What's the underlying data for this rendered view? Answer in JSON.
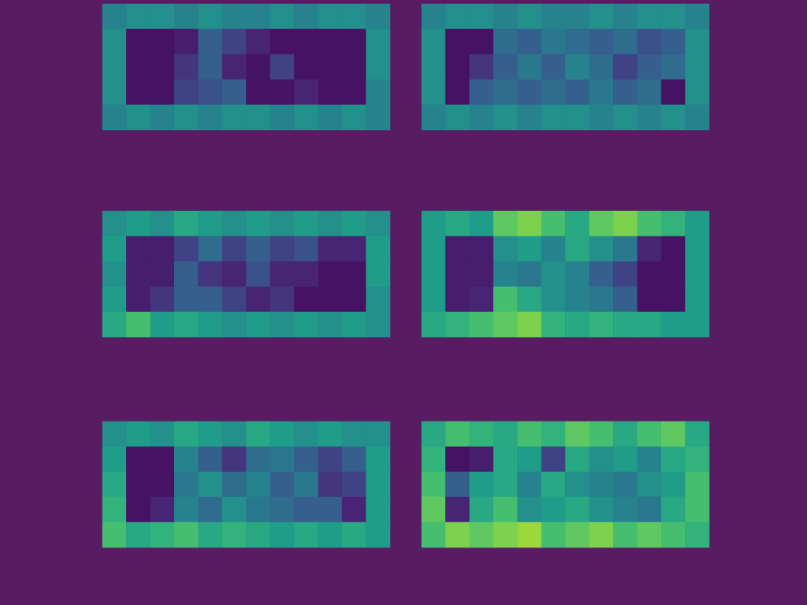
{
  "chart_data": [
    {
      "type": "heatmap",
      "color": "viridis",
      "tick_labels": false,
      "zlim": [
        0,
        1
      ],
      "cells": [
        [
          0.45,
          0.5,
          0.5,
          0.45,
          0.5,
          0.45,
          0.45,
          0.5,
          0.45,
          0.5,
          0.5,
          0.45
        ],
        [
          0.5,
          0.05,
          0.05,
          0.08,
          0.3,
          0.2,
          0.1,
          0.05,
          0.05,
          0.05,
          0.05,
          0.5
        ],
        [
          0.5,
          0.05,
          0.05,
          0.15,
          0.3,
          0.1,
          0.05,
          0.2,
          0.05,
          0.05,
          0.05,
          0.5
        ],
        [
          0.5,
          0.05,
          0.05,
          0.2,
          0.25,
          0.3,
          0.05,
          0.05,
          0.1,
          0.05,
          0.05,
          0.45
        ],
        [
          0.45,
          0.5,
          0.45,
          0.5,
          0.45,
          0.5,
          0.5,
          0.45,
          0.5,
          0.45,
          0.5,
          0.45
        ]
      ]
    },
    {
      "type": "heatmap",
      "color": "viridis",
      "tick_labels": false,
      "zlim": [
        0,
        1
      ],
      "cells": [
        [
          0.45,
          0.5,
          0.5,
          0.45,
          0.5,
          0.45,
          0.45,
          0.5,
          0.45,
          0.5,
          0.5,
          0.45
        ],
        [
          0.5,
          0.05,
          0.05,
          0.35,
          0.3,
          0.4,
          0.35,
          0.3,
          0.35,
          0.25,
          0.3,
          0.5
        ],
        [
          0.5,
          0.05,
          0.15,
          0.3,
          0.4,
          0.3,
          0.45,
          0.35,
          0.2,
          0.3,
          0.35,
          0.5
        ],
        [
          0.5,
          0.05,
          0.3,
          0.35,
          0.3,
          0.35,
          0.3,
          0.4,
          0.3,
          0.35,
          0.05,
          0.5
        ],
        [
          0.45,
          0.5,
          0.45,
          0.5,
          0.45,
          0.5,
          0.5,
          0.45,
          0.5,
          0.45,
          0.5,
          0.45
        ]
      ]
    },
    {
      "type": "heatmap",
      "color": "viridis",
      "tick_labels": false,
      "zlim": [
        0,
        1
      ],
      "cells": [
        [
          0.5,
          0.55,
          0.5,
          0.6,
          0.55,
          0.5,
          0.55,
          0.5,
          0.55,
          0.5,
          0.55,
          0.5
        ],
        [
          0.55,
          0.08,
          0.08,
          0.2,
          0.35,
          0.2,
          0.3,
          0.2,
          0.25,
          0.1,
          0.1,
          0.55
        ],
        [
          0.5,
          0.08,
          0.08,
          0.3,
          0.15,
          0.1,
          0.25,
          0.1,
          0.1,
          0.05,
          0.05,
          0.55
        ],
        [
          0.55,
          0.08,
          0.15,
          0.3,
          0.3,
          0.2,
          0.1,
          0.15,
          0.05,
          0.05,
          0.05,
          0.5
        ],
        [
          0.6,
          0.7,
          0.55,
          0.6,
          0.55,
          0.5,
          0.55,
          0.5,
          0.55,
          0.5,
          0.55,
          0.5
        ]
      ]
    },
    {
      "type": "heatmap",
      "color": "viridis",
      "tick_labels": false,
      "zlim": [
        0,
        1
      ],
      "cells": [
        [
          0.55,
          0.6,
          0.55,
          0.75,
          0.8,
          0.7,
          0.6,
          0.75,
          0.8,
          0.7,
          0.65,
          0.55
        ],
        [
          0.55,
          0.08,
          0.08,
          0.5,
          0.55,
          0.45,
          0.6,
          0.5,
          0.4,
          0.1,
          0.05,
          0.55
        ],
        [
          0.55,
          0.08,
          0.08,
          0.45,
          0.4,
          0.5,
          0.45,
          0.3,
          0.2,
          0.05,
          0.05,
          0.55
        ],
        [
          0.55,
          0.08,
          0.1,
          0.7,
          0.6,
          0.5,
          0.45,
          0.4,
          0.3,
          0.05,
          0.05,
          0.55
        ],
        [
          0.6,
          0.65,
          0.7,
          0.75,
          0.8,
          0.65,
          0.6,
          0.65,
          0.6,
          0.6,
          0.55,
          0.55
        ]
      ]
    },
    {
      "type": "heatmap",
      "color": "viridis",
      "tick_labels": false,
      "zlim": [
        0,
        1
      ],
      "cells": [
        [
          0.5,
          0.55,
          0.5,
          0.6,
          0.55,
          0.5,
          0.6,
          0.55,
          0.5,
          0.55,
          0.5,
          0.5
        ],
        [
          0.55,
          0.05,
          0.05,
          0.45,
          0.3,
          0.15,
          0.35,
          0.4,
          0.3,
          0.2,
          0.3,
          0.55
        ],
        [
          0.6,
          0.05,
          0.05,
          0.4,
          0.5,
          0.35,
          0.45,
          0.3,
          0.4,
          0.15,
          0.2,
          0.55
        ],
        [
          0.65,
          0.05,
          0.1,
          0.45,
          0.35,
          0.5,
          0.4,
          0.35,
          0.3,
          0.3,
          0.1,
          0.55
        ],
        [
          0.7,
          0.6,
          0.65,
          0.7,
          0.6,
          0.65,
          0.6,
          0.55,
          0.6,
          0.55,
          0.6,
          0.55
        ]
      ]
    },
    {
      "type": "heatmap",
      "color": "viridis",
      "tick_labels": false,
      "zlim": [
        0,
        1
      ],
      "cells": [
        [
          0.6,
          0.7,
          0.65,
          0.6,
          0.7,
          0.65,
          0.75,
          0.7,
          0.6,
          0.7,
          0.75,
          0.6
        ],
        [
          0.65,
          0.05,
          0.08,
          0.6,
          0.55,
          0.2,
          0.6,
          0.5,
          0.55,
          0.45,
          0.6,
          0.65
        ],
        [
          0.7,
          0.3,
          0.55,
          0.6,
          0.45,
          0.6,
          0.5,
          0.45,
          0.4,
          0.5,
          0.55,
          0.7
        ],
        [
          0.75,
          0.1,
          0.6,
          0.7,
          0.5,
          0.55,
          0.6,
          0.5,
          0.45,
          0.4,
          0.6,
          0.7
        ],
        [
          0.7,
          0.8,
          0.75,
          0.8,
          0.85,
          0.7,
          0.75,
          0.8,
          0.7,
          0.75,
          0.7,
          0.65
        ]
      ]
    }
  ]
}
